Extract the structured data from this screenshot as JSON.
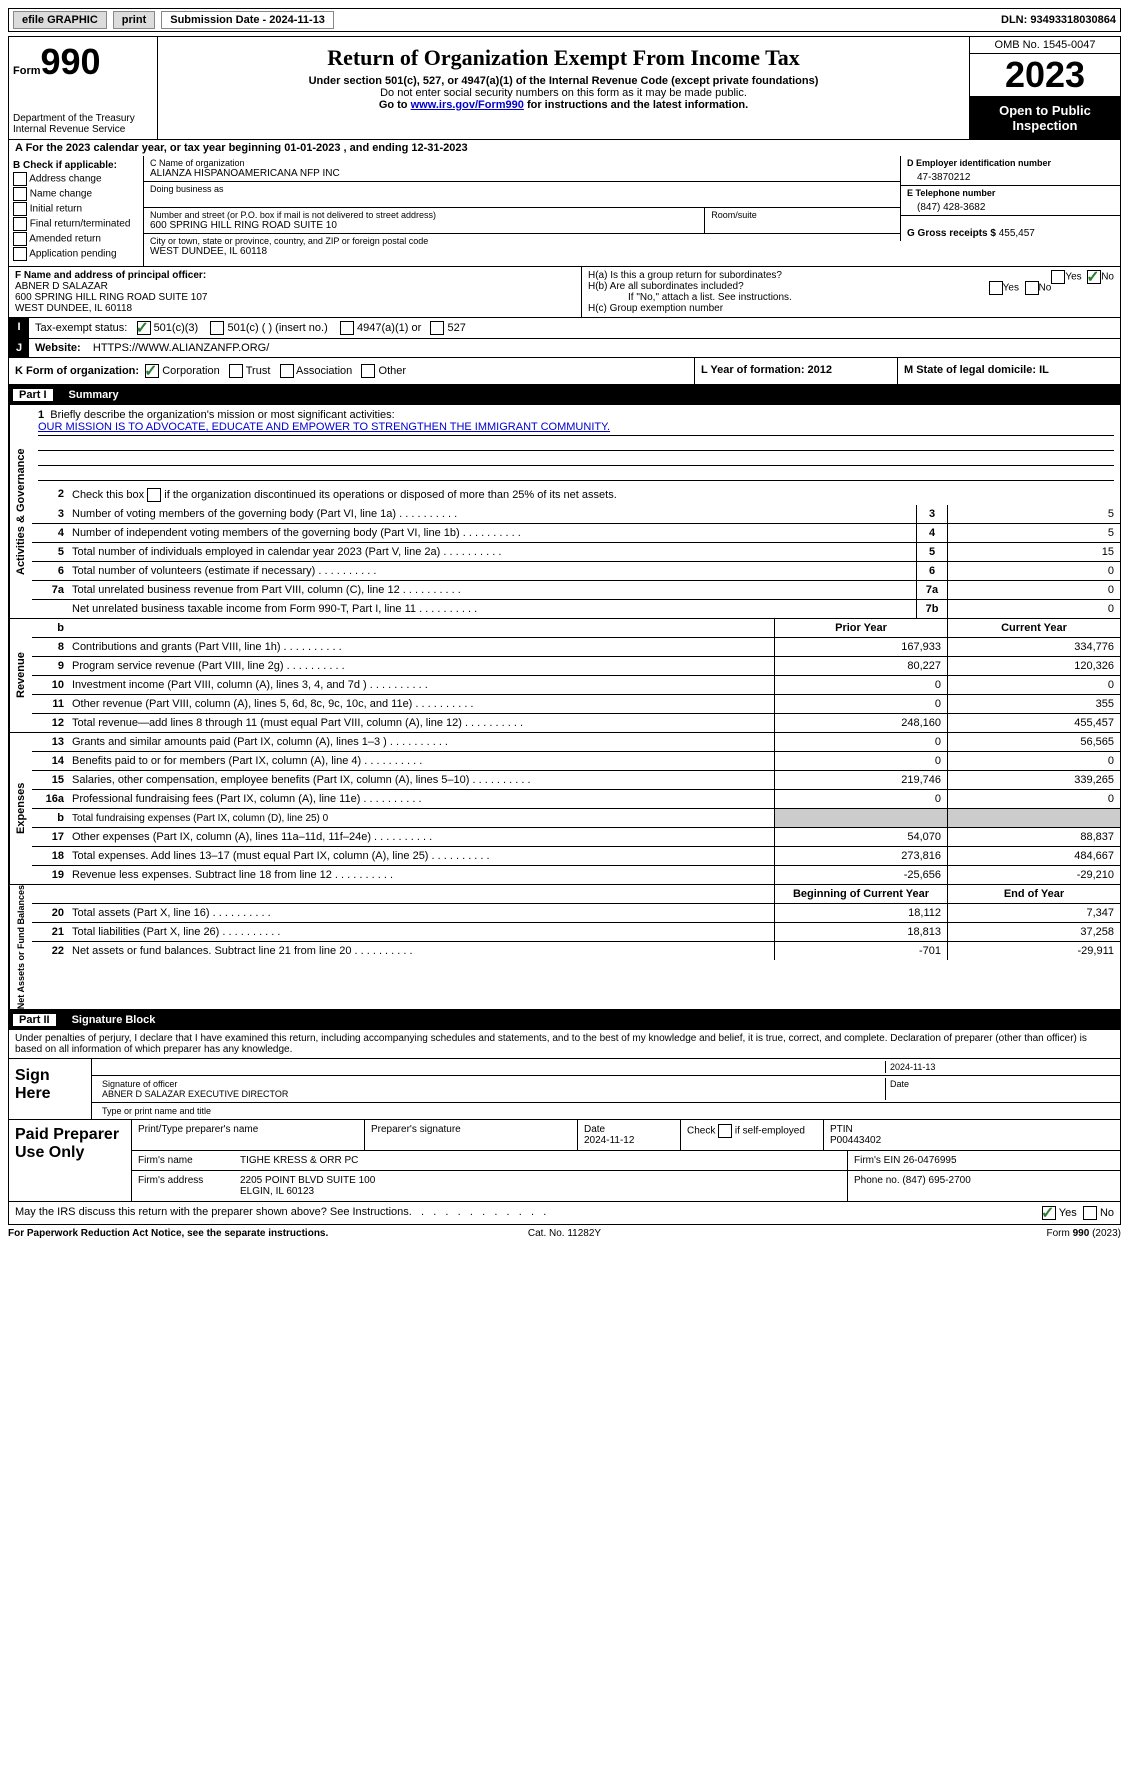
{
  "topbar": {
    "efile": "efile GRAPHIC",
    "print": "print",
    "submission": "Submission Date - 2024-11-13",
    "dln": "DLN: 93493318030864"
  },
  "header": {
    "form_label": "Form",
    "form_no": "990",
    "dept": "Department of the Treasury Internal Revenue Service",
    "title": "Return of Organization Exempt From Income Tax",
    "sub": "Under section 501(c), 527, or 4947(a)(1) of the Internal Revenue Code (except private foundations)",
    "note1": "Do not enter social security numbers on this form as it may be made public.",
    "note2_pre": "Go to ",
    "note2_link": "www.irs.gov/Form990",
    "note2_post": " for instructions and the latest information.",
    "omb": "OMB No. 1545-0047",
    "year": "2023",
    "open": "Open to Public Inspection"
  },
  "lineA": "A For the 2023 calendar year, or tax year beginning 01-01-2023    , and ending 12-31-2023",
  "boxB": {
    "title": "B Check if applicable:",
    "opts": [
      "Address change",
      "Name change",
      "Initial return",
      "Final return/terminated",
      "Amended return",
      "Application pending"
    ]
  },
  "boxC": {
    "name_lbl": "C Name of organization",
    "name": "ALIANZA HISPANOAMERICANA NFP INC",
    "dba_lbl": "Doing business as",
    "addr_lbl": "Number and street (or P.O. box if mail is not delivered to street address)",
    "addr": "600 SPRING HILL RING ROAD SUITE 10",
    "room_lbl": "Room/suite",
    "city_lbl": "City or town, state or province, country, and ZIP or foreign postal code",
    "city": "WEST DUNDEE, IL  60118"
  },
  "boxD": {
    "lbl": "D Employer identification number",
    "val": "47-3870212"
  },
  "boxE": {
    "lbl": "E Telephone number",
    "val": "(847) 428-3682"
  },
  "boxG": {
    "lbl": "G Gross receipts $",
    "val": "455,457"
  },
  "boxF": {
    "lbl": "F  Name and address of principal officer:",
    "l1": "ABNER D SALAZAR",
    "l2": "600 SPRING HILL RING ROAD SUITE 107",
    "l3": "WEST DUNDEE, IL  60118"
  },
  "boxH": {
    "a": "H(a)  Is this a group return for subordinates?",
    "b": "H(b)  Are all subordinates included?",
    "bnote": "If \"No,\" attach a list. See instructions.",
    "c": "H(c)  Group exemption number"
  },
  "lineI": {
    "lbl": "Tax-exempt status:",
    "o1": "501(c)(3)",
    "o2": "501(c) (   ) (insert no.)",
    "o3": "4947(a)(1) or",
    "o4": "527"
  },
  "lineJ": {
    "lbl": "Website:",
    "val": "HTTPS://WWW.ALIANZANFP.ORG/"
  },
  "lineK": {
    "lbl": "K Form of organization:",
    "o1": "Corporation",
    "o2": "Trust",
    "o3": "Association",
    "o4": "Other"
  },
  "lineL": {
    "lbl": "L Year of formation: 2012"
  },
  "lineM": {
    "lbl": "M State of legal domicile: IL"
  },
  "part1": {
    "hdr_pt": "Part I",
    "hdr_title": "Summary",
    "vtab1": "Activities & Governance",
    "vtab2": "Revenue",
    "vtab3": "Expenses",
    "vtab4": "Net Assets or Fund Balances",
    "l1": "Briefly describe the organization's mission or most significant activities:",
    "mission": "OUR MISSION IS TO ADVOCATE, EDUCATE AND EMPOWER TO STRENGTHEN THE IMMIGRANT COMMUNITY.",
    "l2": "Check this box       if the organization discontinued its operations or disposed of more than 25% of its net assets.",
    "rows_gov": [
      {
        "n": "3",
        "t": "Number of voting members of the governing body (Part VI, line 1a)",
        "b": "3",
        "v": "5"
      },
      {
        "n": "4",
        "t": "Number of independent voting members of the governing body (Part VI, line 1b)",
        "b": "4",
        "v": "5"
      },
      {
        "n": "5",
        "t": "Total number of individuals employed in calendar year 2023 (Part V, line 2a)",
        "b": "5",
        "v": "15"
      },
      {
        "n": "6",
        "t": "Total number of volunteers (estimate if necessary)",
        "b": "6",
        "v": "0"
      },
      {
        "n": "7a",
        "t": "Total unrelated business revenue from Part VIII, column (C), line 12",
        "b": "7a",
        "v": "0"
      },
      {
        "n": "",
        "t": "Net unrelated business taxable income from Form 990-T, Part I, line 11",
        "b": "7b",
        "v": "0"
      }
    ],
    "col_prior": "Prior Year",
    "col_curr": "Current Year",
    "col_beg": "Beginning of Current Year",
    "col_end": "End of Year",
    "rows_rev": [
      {
        "n": "8",
        "t": "Contributions and grants (Part VIII, line 1h)",
        "p": "167,933",
        "c": "334,776"
      },
      {
        "n": "9",
        "t": "Program service revenue (Part VIII, line 2g)",
        "p": "80,227",
        "c": "120,326"
      },
      {
        "n": "10",
        "t": "Investment income (Part VIII, column (A), lines 3, 4, and 7d )",
        "p": "0",
        "c": "0"
      },
      {
        "n": "11",
        "t": "Other revenue (Part VIII, column (A), lines 5, 6d, 8c, 9c, 10c, and 11e)",
        "p": "0",
        "c": "355"
      },
      {
        "n": "12",
        "t": "Total revenue—add lines 8 through 11 (must equal Part VIII, column (A), line 12)",
        "p": "248,160",
        "c": "455,457"
      }
    ],
    "rows_exp": [
      {
        "n": "13",
        "t": "Grants and similar amounts paid (Part IX, column (A), lines 1–3 )",
        "p": "0",
        "c": "56,565"
      },
      {
        "n": "14",
        "t": "Benefits paid to or for members (Part IX, column (A), line 4)",
        "p": "0",
        "c": "0"
      },
      {
        "n": "15",
        "t": "Salaries, other compensation, employee benefits (Part IX, column (A), lines 5–10)",
        "p": "219,746",
        "c": "339,265"
      },
      {
        "n": "16a",
        "t": "Professional fundraising fees (Part IX, column (A), line 11e)",
        "p": "0",
        "c": "0"
      },
      {
        "n": "b",
        "t": "Total fundraising expenses (Part IX, column (D), line 25) 0",
        "p": "",
        "c": "",
        "shade": true,
        "sub": true
      },
      {
        "n": "17",
        "t": "Other expenses (Part IX, column (A), lines 11a–11d, 11f–24e)",
        "p": "54,070",
        "c": "88,837"
      },
      {
        "n": "18",
        "t": "Total expenses. Add lines 13–17 (must equal Part IX, column (A), line 25)",
        "p": "273,816",
        "c": "484,667"
      },
      {
        "n": "19",
        "t": "Revenue less expenses. Subtract line 18 from line 12",
        "p": "-25,656",
        "c": "-29,210"
      }
    ],
    "rows_net": [
      {
        "n": "20",
        "t": "Total assets (Part X, line 16)",
        "p": "18,112",
        "c": "7,347"
      },
      {
        "n": "21",
        "t": "Total liabilities (Part X, line 26)",
        "p": "18,813",
        "c": "37,258"
      },
      {
        "n": "22",
        "t": "Net assets or fund balances. Subtract line 21 from line 20",
        "p": "-701",
        "c": "-29,911"
      }
    ]
  },
  "part2": {
    "hdr_pt": "Part II",
    "hdr_title": "Signature Block",
    "decl": "Under penalties of perjury, I declare that I have examined this return, including accompanying schedules and statements, and to the best of my knowledge and belief, it is true, correct, and complete. Declaration of preparer (other than officer) is based on all information of which preparer has any knowledge.",
    "sign_here": "Sign Here",
    "sig_date": "2024-11-13",
    "sig_lbl": "Signature of officer",
    "date_lbl": "Date",
    "sig_name": "ABNER D SALAZAR  EXECUTIVE DIRECTOR",
    "sig_name_lbl": "Type or print name and title",
    "paid": "Paid Preparer Use Only",
    "prep_name_lbl": "Print/Type preparer's name",
    "prep_sig_lbl": "Preparer's signature",
    "prep_date_lbl": "Date",
    "prep_date": "2024-11-12",
    "self_emp": "Check         if self-employed",
    "ptin_lbl": "PTIN",
    "ptin": "P00443402",
    "firm_name_lbl": "Firm's name",
    "firm_name": "TIGHE KRESS & ORR PC",
    "firm_ein_lbl": "Firm's EIN",
    "firm_ein": "26-0476995",
    "firm_addr_lbl": "Firm's address",
    "firm_addr1": "2205 POINT BLVD SUITE 100",
    "firm_addr2": "ELGIN, IL  60123",
    "phone_lbl": "Phone no.",
    "phone": "(847) 695-2700",
    "discuss": "May the IRS discuss this return with the preparer shown above? See Instructions.",
    "yes": "Yes",
    "no": "No"
  },
  "footer": {
    "l": "For Paperwork Reduction Act Notice, see the separate instructions.",
    "m": "Cat. No. 11282Y",
    "r": "Form 990 (2023)"
  }
}
